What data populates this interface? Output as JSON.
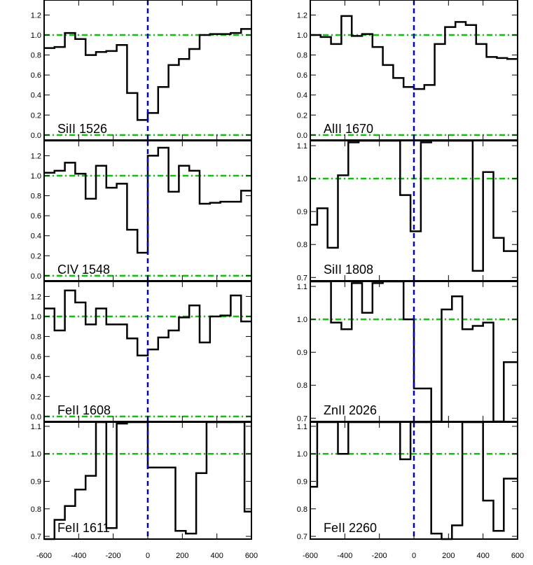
{
  "chart_data": {
    "type": "line",
    "style": {
      "spectrum_color": "#000000",
      "zero_velocity_line_color": "#0000cc",
      "reference_line_color": "#00cc00"
    },
    "x_ticks": [
      -600,
      -400,
      -200,
      0,
      200,
      400,
      600
    ],
    "zero_velocity": 0,
    "panels": [
      {
        "label": "SiII 1526",
        "column": "left",
        "row": 0,
        "xlim": [
          -600,
          600
        ],
        "ylim": [
          -0.05,
          1.35
        ],
        "yticks": [
          "0.0",
          "0.2",
          "0.4",
          "0.6",
          "0.8",
          "1.0",
          "1.2"
        ],
        "reference_lines": [
          1.0,
          0.0
        ],
        "x": [
          -600,
          -540,
          -480,
          -420,
          -360,
          -300,
          -240,
          -180,
          -120,
          -60,
          0,
          60,
          120,
          180,
          240,
          300,
          360,
          420,
          480,
          540,
          600
        ],
        "y": [
          0.87,
          0.88,
          1.02,
          0.96,
          0.8,
          0.83,
          0.84,
          0.9,
          0.42,
          0.15,
          0.22,
          0.48,
          0.7,
          0.76,
          0.86,
          1.0,
          1.01,
          1.01,
          1.02,
          1.06,
          1.04
        ]
      },
      {
        "label": "AlII 1670",
        "column": "right",
        "row": 0,
        "xlim": [
          -600,
          600
        ],
        "ylim": [
          -0.05,
          1.35
        ],
        "yticks": [
          "0.0",
          "0.2",
          "0.4",
          "0.6",
          "0.8",
          "1.0",
          "1.2"
        ],
        "reference_lines": [
          1.0,
          0.0
        ],
        "x": [
          -600,
          -540,
          -480,
          -420,
          -360,
          -300,
          -240,
          -180,
          -120,
          -60,
          0,
          60,
          120,
          180,
          240,
          300,
          360,
          420,
          480,
          540,
          600
        ],
        "y": [
          1.0,
          0.98,
          0.91,
          1.19,
          0.99,
          1.01,
          0.88,
          0.7,
          0.57,
          0.48,
          0.46,
          0.5,
          0.91,
          1.08,
          1.13,
          1.1,
          0.91,
          0.78,
          0.77,
          0.76,
          0.76
        ]
      },
      {
        "label": "CIV 1548",
        "column": "left",
        "row": 1,
        "xlim": [
          -600,
          600
        ],
        "ylim": [
          -0.05,
          1.35
        ],
        "yticks": [
          "0.0",
          "0.2",
          "0.4",
          "0.6",
          "0.8",
          "1.0",
          "1.2"
        ],
        "reference_lines": [
          1.0,
          0.0
        ],
        "x": [
          -600,
          -540,
          -480,
          -420,
          -360,
          -300,
          -240,
          -180,
          -120,
          -60,
          0,
          60,
          120,
          180,
          240,
          300,
          360,
          420,
          480,
          540,
          600
        ],
        "y": [
          1.03,
          1.05,
          1.13,
          1.02,
          0.77,
          1.1,
          0.88,
          0.92,
          0.46,
          0.23,
          1.2,
          1.28,
          0.84,
          1.1,
          1.05,
          0.72,
          0.73,
          0.74,
          0.74,
          0.85,
          0.85
        ]
      },
      {
        "label": "SiII 1808",
        "column": "right",
        "row": 1,
        "xlim": [
          -600,
          600
        ],
        "ylim": [
          0.69,
          1.115
        ],
        "yticks": [
          "0.7",
          "0.8",
          "0.9",
          "1.0",
          "1.1"
        ],
        "reference_lines": [
          1.0
        ],
        "x": [
          -600,
          -560,
          -500,
          -440,
          -380,
          -320,
          -260,
          -200,
          -140,
          -80,
          -20,
          40,
          100,
          160,
          220,
          280,
          340,
          400,
          460,
          520,
          560,
          600
        ],
        "y": [
          0.86,
          0.91,
          0.79,
          1.01,
          1.11,
          1.12,
          1.12,
          1.12,
          1.12,
          0.95,
          0.84,
          1.11,
          1.12,
          1.12,
          1.12,
          1.12,
          0.72,
          1.02,
          0.82,
          0.78,
          0.78,
          0.78
        ]
      },
      {
        "label": "FeII 1608",
        "column": "left",
        "row": 2,
        "xlim": [
          -600,
          600
        ],
        "ylim": [
          -0.05,
          1.35
        ],
        "yticks": [
          "0.0",
          "0.2",
          "0.4",
          "0.6",
          "0.8",
          "1.0",
          "1.2"
        ],
        "reference_lines": [
          1.0,
          0.0
        ],
        "x": [
          -600,
          -540,
          -480,
          -420,
          -360,
          -300,
          -240,
          -180,
          -120,
          -60,
          0,
          60,
          120,
          180,
          240,
          300,
          360,
          420,
          480,
          540,
          600
        ],
        "y": [
          1.08,
          0.86,
          1.26,
          1.14,
          0.92,
          1.08,
          0.92,
          0.92,
          0.78,
          0.61,
          0.67,
          0.79,
          0.86,
          0.99,
          1.11,
          0.74,
          1.0,
          1.01,
          1.21,
          0.95,
          0.95
        ]
      },
      {
        "label": "ZnII 2026",
        "column": "right",
        "row": 2,
        "xlim": [
          -600,
          600
        ],
        "ylim": [
          0.69,
          1.115
        ],
        "yticks": [
          "0.7",
          "0.8",
          "0.9",
          "1.0",
          "1.1"
        ],
        "reference_lines": [
          1.0
        ],
        "x": [
          -600,
          -540,
          -480,
          -420,
          -360,
          -300,
          -240,
          -180,
          -120,
          -60,
          0,
          40,
          100,
          160,
          220,
          280,
          340,
          400,
          460,
          520,
          560,
          600
        ],
        "y": [
          1.12,
          1.12,
          0.99,
          0.97,
          1.11,
          1.02,
          1.11,
          1.12,
          1.12,
          1.0,
          0.79,
          0.79,
          0.69,
          1.03,
          1.07,
          0.97,
          0.98,
          0.99,
          0.69,
          0.87,
          0.87,
          0.87
        ]
      },
      {
        "label": "FeII 1611",
        "column": "left",
        "row": 3,
        "xlim": [
          -600,
          600
        ],
        "ylim": [
          0.69,
          1.115
        ],
        "yticks": [
          "0.7",
          "0.8",
          "0.9",
          "1.0",
          "1.1"
        ],
        "reference_lines": [
          1.0
        ],
        "x": [
          -600,
          -540,
          -480,
          -420,
          -360,
          -300,
          -240,
          -180,
          -120,
          -60,
          0,
          40,
          100,
          160,
          220,
          280,
          340,
          400,
          460,
          520,
          560,
          600
        ],
        "y": [
          0.69,
          0.76,
          0.81,
          0.87,
          0.92,
          1.12,
          0.73,
          1.11,
          1.12,
          1.12,
          0.95,
          0.95,
          0.95,
          0.72,
          0.71,
          0.93,
          1.12,
          1.12,
          1.12,
          1.12,
          0.79,
          0.79
        ]
      },
      {
        "label": "FeII 2260",
        "column": "right",
        "row": 3,
        "xlim": [
          -600,
          600
        ],
        "ylim": [
          0.69,
          1.115
        ],
        "yticks": [
          "0.7",
          "0.8",
          "0.9",
          "1.0",
          "1.1"
        ],
        "reference_lines": [
          1.0
        ],
        "x": [
          -600,
          -560,
          -500,
          -440,
          -380,
          -320,
          -260,
          -200,
          -140,
          -80,
          -20,
          40,
          100,
          160,
          220,
          280,
          340,
          400,
          460,
          520,
          560,
          600
        ],
        "y": [
          0.88,
          1.12,
          1.12,
          1.0,
          1.12,
          1.12,
          1.12,
          1.12,
          1.12,
          0.98,
          1.12,
          1.12,
          0.71,
          0.69,
          0.74,
          1.12,
          1.12,
          0.83,
          0.72,
          0.91,
          0.91,
          0.91
        ]
      }
    ]
  }
}
